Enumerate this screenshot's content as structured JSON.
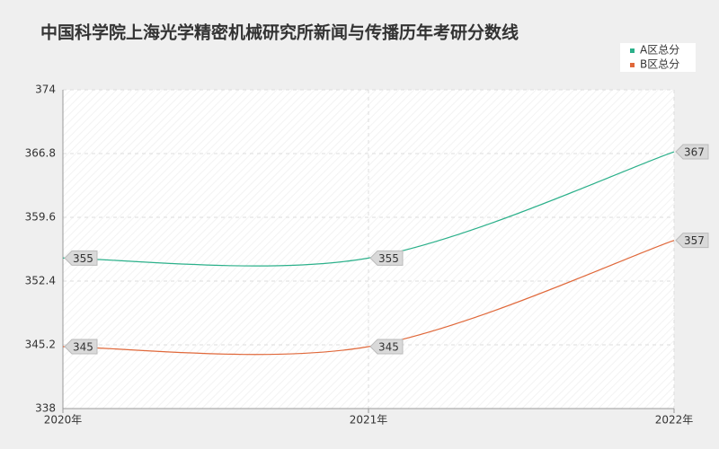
{
  "chart_data": {
    "type": "line",
    "title": "中国科学院上海光学精密机械研究所新闻与传播历年考研分数线",
    "categories": [
      "2020年",
      "2021年",
      "2022年"
    ],
    "series": [
      {
        "name": "A区总分",
        "color": "#2bb08a",
        "values": [
          355,
          355,
          367
        ]
      },
      {
        "name": "B区总分",
        "color": "#e0683a",
        "values": [
          345,
          345,
          357
        ]
      }
    ],
    "ylim": [
      338,
      374
    ],
    "yticks": [
      338,
      345.2,
      352.4,
      359.6,
      366.8,
      374
    ],
    "grid": true,
    "legend": "top-right",
    "smooth": true
  }
}
